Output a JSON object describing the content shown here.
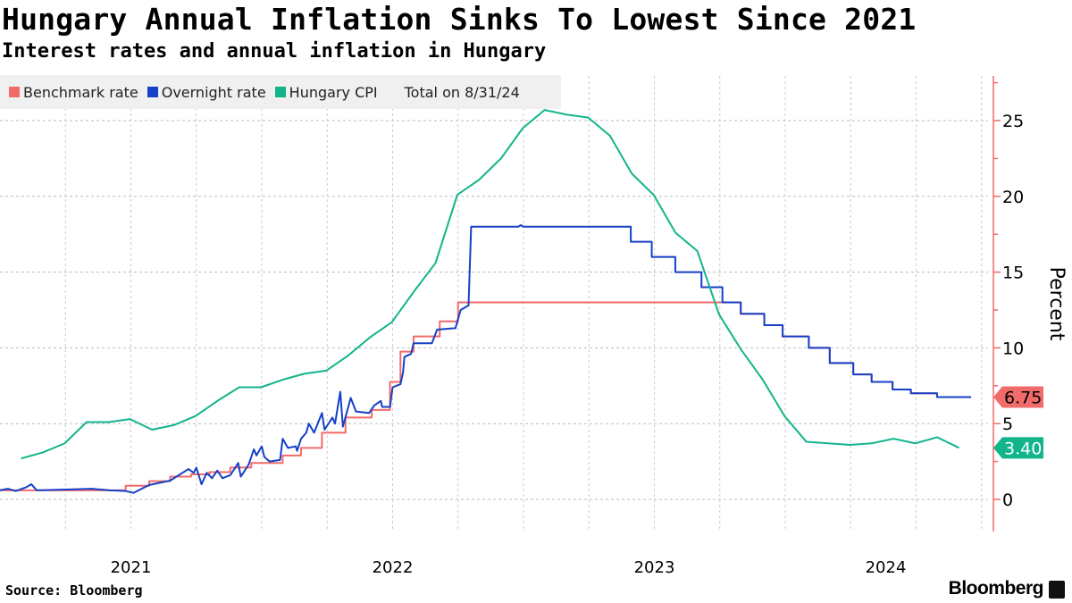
{
  "title": "Hungary Annual Inflation Sinks To Lowest Since 2021",
  "subtitle": "Interest rates and annual inflation in Hungary",
  "source": "Source: Bloomberg",
  "logo": "Bloomberg",
  "chart_data": {
    "type": "line",
    "legend": {
      "placement": "top-left",
      "total_label": "Total on 8/31/24"
    },
    "ylabel": "Percent",
    "y_axis_side": "right",
    "ylim": [
      -2,
      28
    ],
    "yticks": [
      0,
      5,
      10,
      15,
      20,
      25
    ],
    "xlim": [
      2021.0,
      2024.77
    ],
    "xtick_labels": [
      "2021",
      "2022",
      "2023",
      "2024"
    ],
    "grid": true,
    "colors": {
      "benchmark": "#f26b6b",
      "overnight": "#1540c8",
      "cpi": "#12b48c",
      "axis": "#f26b6b"
    },
    "end_labels": [
      {
        "series": "Benchmark rate",
        "value": "6.75",
        "color": "#f26b6b"
      },
      {
        "series": "Hungary CPI",
        "value": "3.40",
        "color": "#12b48c"
      }
    ],
    "series": [
      {
        "name": "Benchmark rate",
        "color": "#f26b6b",
        "step": true,
        "x_units": "year",
        "points": [
          [
            2021.0,
            0.6
          ],
          [
            2021.48,
            0.9
          ],
          [
            2021.57,
            1.2
          ],
          [
            2021.65,
            1.5
          ],
          [
            2021.73,
            1.65
          ],
          [
            2021.8,
            1.8
          ],
          [
            2021.88,
            2.1
          ],
          [
            2021.96,
            2.4
          ],
          [
            2022.08,
            2.9
          ],
          [
            2022.15,
            3.4
          ],
          [
            2022.23,
            4.4
          ],
          [
            2022.32,
            5.4
          ],
          [
            2022.42,
            5.9
          ],
          [
            2022.49,
            7.75
          ],
          [
            2022.53,
            9.75
          ],
          [
            2022.58,
            10.75
          ],
          [
            2022.68,
            11.75
          ],
          [
            2022.75,
            13.0
          ],
          [
            2023.76,
            13.0
          ],
          [
            2023.83,
            12.25
          ],
          [
            2023.92,
            11.5
          ],
          [
            2023.99,
            10.75
          ],
          [
            2024.09,
            10.0
          ],
          [
            2024.17,
            9.0
          ],
          [
            2024.26,
            8.25
          ],
          [
            2024.33,
            7.75
          ],
          [
            2024.41,
            7.25
          ],
          [
            2024.48,
            7.0
          ],
          [
            2024.58,
            6.75
          ],
          [
            2024.71,
            6.75
          ]
        ]
      },
      {
        "name": "Overnight rate",
        "color": "#1540c8",
        "step": false,
        "x_units": "year",
        "points": [
          [
            2021.0,
            0.6
          ],
          [
            2021.03,
            0.7
          ],
          [
            2021.06,
            0.55
          ],
          [
            2021.1,
            0.8
          ],
          [
            2021.12,
            1.0
          ],
          [
            2021.14,
            0.6
          ],
          [
            2021.25,
            0.65
          ],
          [
            2021.35,
            0.7
          ],
          [
            2021.42,
            0.6
          ],
          [
            2021.48,
            0.55
          ],
          [
            2021.51,
            0.43
          ],
          [
            2021.57,
            0.95
          ],
          [
            2021.65,
            1.24
          ],
          [
            2021.72,
            2.0
          ],
          [
            2021.74,
            1.75
          ],
          [
            2021.75,
            2.1
          ],
          [
            2021.77,
            1.0
          ],
          [
            2021.79,
            1.75
          ],
          [
            2021.81,
            1.4
          ],
          [
            2021.83,
            1.9
          ],
          [
            2021.85,
            1.4
          ],
          [
            2021.88,
            1.6
          ],
          [
            2021.91,
            2.4
          ],
          [
            2021.92,
            1.5
          ],
          [
            2021.95,
            2.3
          ],
          [
            2021.97,
            3.3
          ],
          [
            2021.98,
            2.9
          ],
          [
            2022.0,
            3.5
          ],
          [
            2022.01,
            2.8
          ],
          [
            2022.03,
            2.5
          ],
          [
            2022.07,
            2.6
          ],
          [
            2022.08,
            4.0
          ],
          [
            2022.1,
            3.4
          ],
          [
            2022.13,
            3.5
          ],
          [
            2022.135,
            3.2
          ],
          [
            2022.15,
            4.0
          ],
          [
            2022.17,
            4.4
          ],
          [
            2022.18,
            5.0
          ],
          [
            2022.2,
            4.4
          ],
          [
            2022.23,
            5.7
          ],
          [
            2022.24,
            4.6
          ],
          [
            2022.27,
            5.4
          ],
          [
            2022.28,
            5.0
          ],
          [
            2022.3,
            7.1
          ],
          [
            2022.31,
            4.8
          ],
          [
            2022.34,
            6.7
          ],
          [
            2022.36,
            5.8
          ],
          [
            2022.41,
            5.7
          ],
          [
            2022.43,
            6.2
          ],
          [
            2022.455,
            6.5
          ],
          [
            2022.46,
            6.1
          ],
          [
            2022.49,
            6.1
          ],
          [
            2022.5,
            7.4
          ],
          [
            2022.53,
            7.6
          ],
          [
            2022.54,
            8.4
          ],
          [
            2022.545,
            9.4
          ],
          [
            2022.57,
            9.6
          ],
          [
            2022.58,
            10.3
          ],
          [
            2022.65,
            10.3
          ],
          [
            2022.67,
            11.2
          ],
          [
            2022.74,
            11.3
          ],
          [
            2022.76,
            12.5
          ],
          [
            2022.79,
            12.8
          ],
          [
            2022.8,
            18.0
          ],
          [
            2022.98,
            18.0
          ],
          [
            2022.99,
            18.1
          ],
          [
            2023.0,
            18.0
          ],
          [
            2023.41,
            18.0
          ],
          [
            2023.41,
            17
          ],
          [
            2023.49,
            17
          ],
          [
            2023.49,
            16
          ],
          [
            2023.58,
            16
          ],
          [
            2023.58,
            15
          ],
          [
            2023.68,
            15
          ],
          [
            2023.68,
            14
          ],
          [
            2023.76,
            14
          ],
          [
            2023.76,
            13
          ],
          [
            2023.83,
            13
          ],
          [
            2023.83,
            12.25
          ],
          [
            2023.92,
            12.25
          ],
          [
            2023.92,
            11.5
          ],
          [
            2023.99,
            11.5
          ],
          [
            2023.99,
            10.75
          ],
          [
            2024.09,
            10.75
          ],
          [
            2024.09,
            10
          ],
          [
            2024.17,
            10
          ],
          [
            2024.17,
            9
          ],
          [
            2024.26,
            9
          ],
          [
            2024.26,
            8.25
          ],
          [
            2024.33,
            8.25
          ],
          [
            2024.33,
            7.75
          ],
          [
            2024.41,
            7.75
          ],
          [
            2024.41,
            7.25
          ],
          [
            2024.48,
            7.25
          ],
          [
            2024.48,
            7.0
          ],
          [
            2024.58,
            7.0
          ],
          [
            2024.58,
            6.75
          ],
          [
            2024.71,
            6.75
          ]
        ]
      },
      {
        "name": "Hungary CPI",
        "color": "#12b48c",
        "step": false,
        "x_units": "month",
        "months": [
          "2021-01",
          "2021-02",
          "2021-03",
          "2021-04",
          "2021-05",
          "2021-06",
          "2021-07",
          "2021-08",
          "2021-09",
          "2021-10",
          "2021-11",
          "2021-12",
          "2022-01",
          "2022-02",
          "2022-03",
          "2022-04",
          "2022-05",
          "2022-06",
          "2022-07",
          "2022-08",
          "2022-09",
          "2022-10",
          "2022-11",
          "2022-12",
          "2023-01",
          "2023-02",
          "2023-03",
          "2023-04",
          "2023-05",
          "2023-06",
          "2023-07",
          "2023-08",
          "2023-09",
          "2023-10",
          "2023-11",
          "2023-12",
          "2024-01",
          "2024-02",
          "2024-03",
          "2024-04",
          "2024-05",
          "2024-06",
          "2024-07",
          "2024-08"
        ],
        "values": [
          2.7,
          3.1,
          3.7,
          5.1,
          5.1,
          5.3,
          4.6,
          4.9,
          5.5,
          6.5,
          7.4,
          7.4,
          7.9,
          8.3,
          8.5,
          9.5,
          10.7,
          11.7,
          13.7,
          15.6,
          20.1,
          21.1,
          22.5,
          24.5,
          25.7,
          25.4,
          25.2,
          24.0,
          21.5,
          20.1,
          17.6,
          16.4,
          12.2,
          9.9,
          7.9,
          5.5,
          3.8,
          3.7,
          3.6,
          3.7,
          4.0,
          3.7,
          4.1,
          3.4
        ]
      }
    ]
  }
}
